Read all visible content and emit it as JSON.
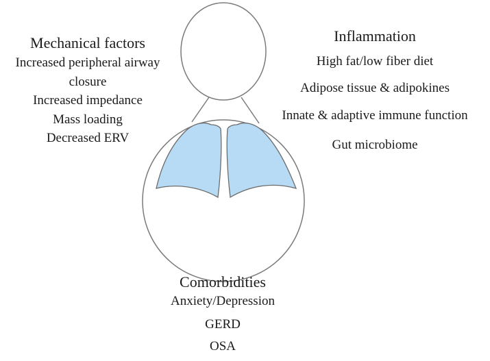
{
  "mechanical": {
    "title": "Mechanical factors",
    "items": [
      "Increased peripheral airway",
      "closure",
      "Increased impedance",
      "Mass loading",
      "Decreased ERV"
    ]
  },
  "inflammation": {
    "title": "Inflammation",
    "items": [
      "High fat/low fiber diet",
      "Adipose tissue & adipokines",
      "Innate & adaptive immune function",
      "Gut microbiome"
    ]
  },
  "comorbidities": {
    "title": "Comorbidities",
    "items": [
      "Anxiety/Depression",
      "GERD",
      "OSA"
    ]
  },
  "colors": {
    "lung_fill": "#b7dbf4",
    "outline": "#777777"
  }
}
